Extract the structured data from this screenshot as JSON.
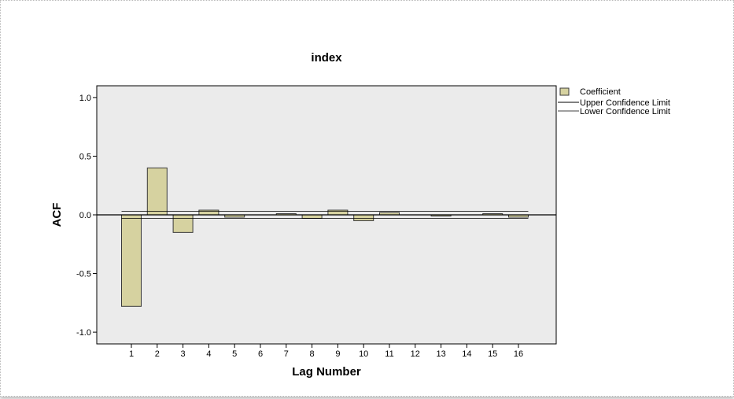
{
  "chart_data": {
    "type": "bar",
    "title": "index",
    "xlabel": "Lag Number",
    "ylabel": "ACF",
    "categories": [
      "1",
      "2",
      "3",
      "4",
      "5",
      "6",
      "7",
      "8",
      "9",
      "10",
      "11",
      "12",
      "13",
      "14",
      "15",
      "16"
    ],
    "series": [
      {
        "name": "Coefficient",
        "values": [
          -0.78,
          0.4,
          -0.15,
          0.04,
          -0.02,
          0.0,
          0.01,
          -0.03,
          0.04,
          -0.05,
          0.02,
          0.0,
          -0.01,
          0.0,
          0.01,
          -0.02
        ]
      }
    ],
    "upper_confidence_limit": 0.03,
    "lower_confidence_limit": -0.03,
    "legend_items": [
      "Coefficient",
      "Upper Confidence Limit",
      "Lower Confidence Limit"
    ],
    "ylim": [
      -1.1,
      1.1
    ],
    "yticks": [
      1.0,
      0.5,
      0.0,
      -0.5,
      -1.0
    ],
    "ytick_labels": [
      "1.0",
      "0.5",
      "0.0",
      "-0.5",
      "-1.0"
    ],
    "legend_position": "right",
    "grid": false,
    "colors": {
      "bar_fill": "#d6d2a0",
      "bar_stroke": "#3a3a3a",
      "plot_background": "#ebebeb",
      "line": "#000000"
    }
  }
}
